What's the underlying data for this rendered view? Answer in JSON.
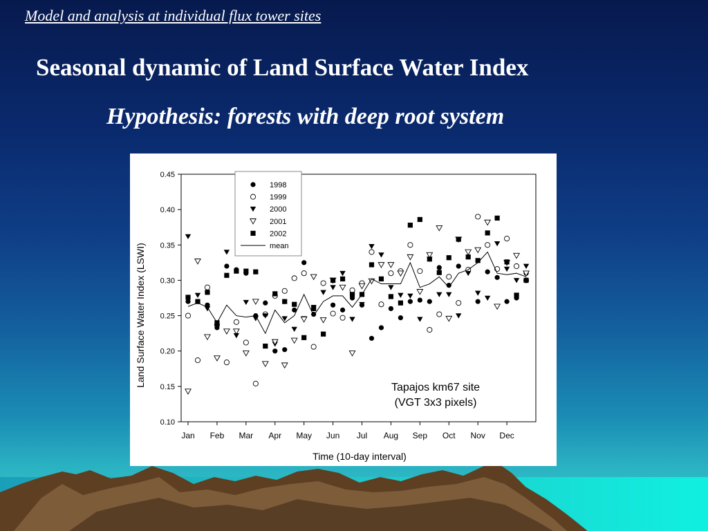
{
  "slide": {
    "subtitle": "Model and analysis at individual flux tower sites",
    "title": "Seasonal dynamic of Land Surface Water Index",
    "hypothesis": "Hypothesis: forests with deep root system"
  },
  "colors": {
    "background_top": "#071a4e",
    "background_bottom": "#3fd0d0",
    "text": "#ffffff",
    "mountain": "#6b4a2a"
  },
  "chart_data": {
    "type": "scatter",
    "xlabel": "Time (10-day interval)",
    "ylabel": "Land Surface Water Index (LSWI)",
    "xlim": [
      0,
      36
    ],
    "ylim": [
      0.1,
      0.45
    ],
    "yticks": [
      0.1,
      0.15,
      0.2,
      0.25,
      0.3,
      0.35,
      0.4,
      0.45
    ],
    "ytick_labels": [
      "0.10",
      "0.15",
      "0.20",
      "0.25",
      "0.30",
      "0.35",
      "0.40",
      "0.45"
    ],
    "xticks": [
      0,
      3,
      6,
      9,
      12,
      15,
      18,
      21,
      24,
      27,
      30,
      33
    ],
    "xtick_labels": [
      "Jan",
      "Feb",
      "Mar",
      "Apr",
      "May",
      "Jun",
      "Jul",
      "Aug",
      "Sep",
      "Oct",
      "Nov",
      "Dec"
    ],
    "annotation": [
      "Tapajos km67 site",
      "(VGT 3x3 pixels)"
    ],
    "legend_position": "top-center",
    "grid": false,
    "x": [
      0,
      1,
      2,
      3,
      4,
      5,
      6,
      7,
      8,
      9,
      10,
      11,
      12,
      13,
      14,
      15,
      16,
      17,
      18,
      19,
      20,
      21,
      22,
      23,
      24,
      25,
      26,
      27,
      28,
      29,
      30,
      31,
      32,
      33,
      34,
      35
    ],
    "series": [
      {
        "name": "1998",
        "marker": "filled-circle",
        "values": [
          0.27,
          0.27,
          0.265,
          0.233,
          0.32,
          0.315,
          0.31,
          0.25,
          0.268,
          0.2,
          0.202,
          0.258,
          0.325,
          0.252,
          0.296,
          0.265,
          0.258,
          0.275,
          0.265,
          0.218,
          0.233,
          0.26,
          0.247,
          0.27,
          0.272,
          0.27,
          0.318,
          0.293,
          0.32,
          0.313,
          0.27,
          0.312,
          0.304,
          0.27,
          0.275,
          0.31
        ]
      },
      {
        "name": "1999",
        "marker": "open-circle",
        "values": [
          0.25,
          0.187,
          0.29,
          0.237,
          0.184,
          0.241,
          0.212,
          0.154,
          0.252,
          0.278,
          0.285,
          0.303,
          0.31,
          0.206,
          0.296,
          0.253,
          0.247,
          0.286,
          0.296,
          0.34,
          0.266,
          0.31,
          0.313,
          0.35,
          0.313,
          0.23,
          0.252,
          0.305,
          0.268,
          0.315,
          0.39,
          0.35,
          0.316,
          0.359,
          0.32,
          0.3
        ]
      },
      {
        "name": "2000",
        "marker": "filled-triangle-down",
        "values": [
          0.362,
          0.279,
          0.26,
          0.234,
          0.34,
          0.222,
          0.269,
          0.246,
          0.25,
          0.21,
          0.246,
          0.231,
          0.246,
          0.262,
          0.283,
          0.29,
          0.31,
          0.245,
          0.266,
          0.348,
          0.336,
          0.29,
          0.279,
          0.278,
          0.245,
          0.33,
          0.28,
          0.28,
          0.25,
          0.31,
          0.282,
          0.275,
          0.352,
          0.316,
          0.3,
          0.32
        ]
      },
      {
        "name": "2001",
        "marker": "open-triangle-down",
        "values": [
          0.143,
          0.327,
          0.22,
          0.19,
          0.228,
          0.228,
          0.197,
          0.27,
          0.182,
          0.213,
          0.18,
          0.215,
          0.245,
          0.305,
          0.244,
          0.3,
          0.29,
          0.197,
          0.292,
          0.299,
          0.322,
          0.322,
          0.31,
          0.333,
          0.284,
          0.336,
          0.374,
          0.246,
          0.358,
          0.34,
          0.343,
          0.382,
          0.263,
          0.325,
          0.335,
          0.31
        ]
      },
      {
        "name": "2002",
        "marker": "filled-square",
        "values": [
          0.276,
          0.27,
          0.283,
          0.24,
          0.307,
          0.313,
          0.313,
          0.312,
          0.207,
          0.281,
          0.27,
          0.266,
          0.219,
          0.26,
          0.224,
          0.3,
          0.302,
          0.28,
          0.28,
          0.322,
          0.302,
          0.277,
          0.268,
          0.378,
          0.386,
          0.33,
          0.311,
          0.332,
          0.358,
          0.333,
          0.328,
          0.367,
          0.388,
          0.326,
          0.279,
          0.3
        ]
      },
      {
        "name": "mean",
        "marker": "line",
        "values": [
          0.263,
          0.268,
          0.262,
          0.24,
          0.265,
          0.25,
          0.248,
          0.25,
          0.225,
          0.258,
          0.24,
          0.25,
          0.28,
          0.25,
          0.27,
          0.278,
          0.278,
          0.262,
          0.28,
          0.302,
          0.295,
          0.295,
          0.295,
          0.325,
          0.29,
          0.295,
          0.305,
          0.29,
          0.31,
          0.315,
          0.325,
          0.34,
          0.31,
          0.308,
          0.31,
          0.305
        ]
      }
    ]
  }
}
